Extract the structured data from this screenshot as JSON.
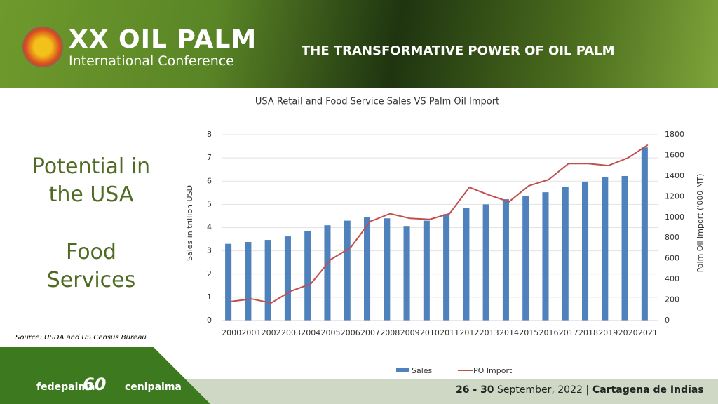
{
  "header": {
    "logo_title": "XX OIL PALM",
    "logo_subtitle": "International Conference",
    "slogan": "THE TRANSFORMATIVE POWER OF OIL PALM"
  },
  "side": {
    "heading": "Potential in the USA",
    "subheading": "Food Services",
    "source": "Source: USDA and US Census Bureau"
  },
  "footer": {
    "brand1": "fedepalma",
    "anniversary": "60",
    "brand2": "cenipalma",
    "days": "26 - 30",
    "month": "September, 2022",
    "separator": "|",
    "place": "Cartagena de Indias"
  },
  "chart_data": {
    "type": "bar-line",
    "title": "USA Retail and Food Service Sales VS Palm Oil Import",
    "y_label": "Sales in trillion USD",
    "y2_label": "Palm Oil Import ('000 MT)",
    "categories": [
      "2000",
      "2001",
      "2002",
      "2003",
      "2004",
      "2005",
      "2006",
      "2007",
      "2008",
      "2009",
      "2010",
      "2011",
      "2012",
      "2013",
      "2014",
      "2015",
      "2016",
      "2017",
      "2018",
      "2019",
      "2020",
      "2021"
    ],
    "series": [
      {
        "name": "Sales",
        "type": "bar",
        "color": "#4f81bd",
        "values": [
          3.3,
          3.38,
          3.47,
          3.62,
          3.85,
          4.1,
          4.3,
          4.45,
          4.4,
          4.07,
          4.3,
          4.58,
          4.83,
          5.0,
          5.22,
          5.35,
          5.52,
          5.75,
          5.98,
          6.18,
          6.22,
          7.45
        ]
      },
      {
        "name": "PO Import",
        "type": "line",
        "axis": "y2",
        "color": "#c0504d",
        "values": [
          185,
          210,
          170,
          285,
          355,
          590,
          705,
          960,
          1035,
          990,
          980,
          1035,
          1290,
          1215,
          1150,
          1305,
          1365,
          1520,
          1520,
          1500,
          1575,
          1700
        ]
      }
    ],
    "ylim": [
      0,
      8
    ],
    "yticks": [
      0,
      1,
      2,
      3,
      4,
      5,
      6,
      7,
      8
    ],
    "y2lim": [
      0,
      1800
    ],
    "y2ticks": [
      0,
      200,
      400,
      600,
      800,
      1000,
      1200,
      1400,
      1600,
      1800
    ],
    "grid": true,
    "legend": "bottom"
  }
}
